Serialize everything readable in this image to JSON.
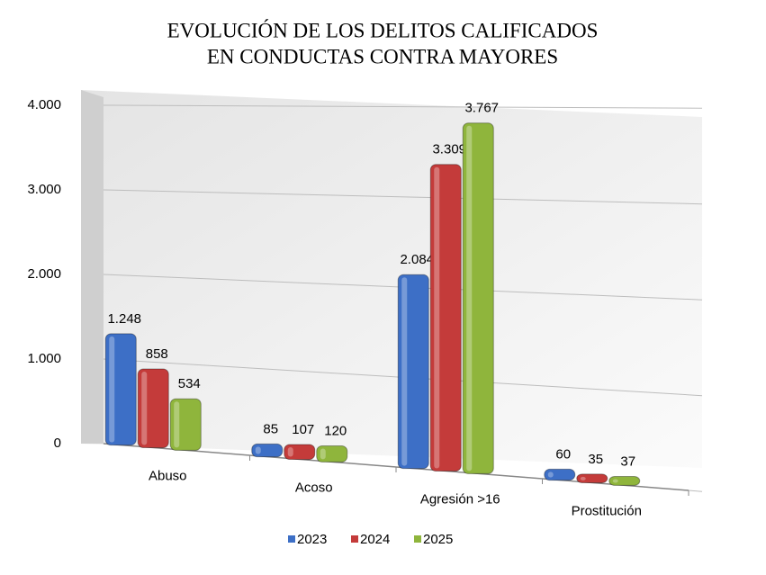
{
  "chart_data": {
    "type": "bar",
    "title": [
      "EVOLUCIÓN DE LOS DELITOS CALIFICADOS",
      "EN CONDUCTAS CONTRA MAYORES"
    ],
    "categories": [
      "Abuso",
      "Acoso",
      "Agresión >16",
      "Prostitución"
    ],
    "series": [
      {
        "name": "2023",
        "color": "#3d6fc6",
        "values": [
          1248,
          85,
          2084,
          60
        ],
        "value_labels": [
          "1.248",
          "85",
          "2.084",
          "60"
        ]
      },
      {
        "name": "2024",
        "color": "#c43b3a",
        "values": [
          858,
          107,
          3309,
          35
        ],
        "value_labels": [
          "858",
          "107",
          "3.309",
          "35"
        ]
      },
      {
        "name": "2025",
        "color": "#8fb53c",
        "values": [
          534,
          120,
          3767,
          37
        ],
        "value_labels": [
          "534",
          "120",
          "3.767",
          "37"
        ]
      }
    ],
    "ylim": [
      0,
      4000
    ],
    "yticks": [
      0,
      {
        "value": 1000,
        "label": "1.000"
      },
      {
        "value": 2000,
        "label": "2.000"
      },
      {
        "value": 3000,
        "label": "3.000"
      },
      {
        "value": 4000,
        "label": "4.000"
      }
    ],
    "grid": true
  }
}
